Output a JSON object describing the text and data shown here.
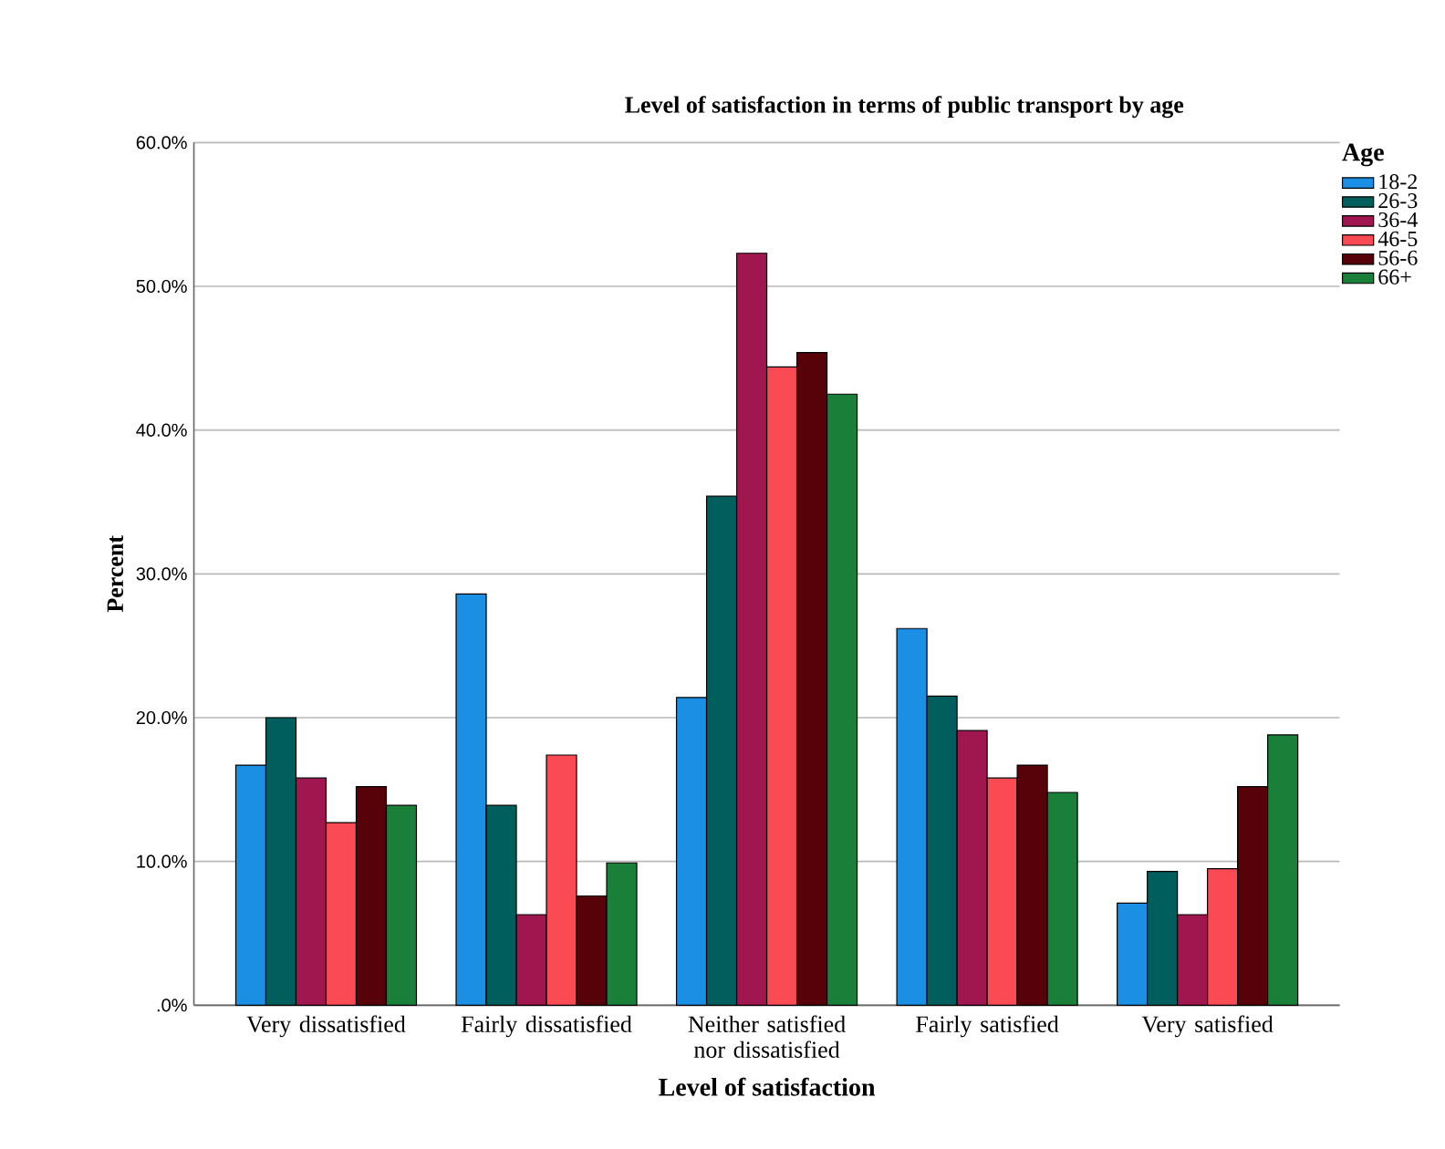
{
  "chart_data": {
    "type": "bar",
    "title": "Level of satisfaction in terms of public transport by age",
    "xlabel": "Level of satisfaction",
    "ylabel": "Percent",
    "legend_title": "Age",
    "categories": [
      "Very dissatisfied",
      "Fairly dissatisfied",
      "Neither satisfied nor dissatisfied",
      "Fairly satisfied",
      "Very satisfied"
    ],
    "series": [
      {
        "name": "18-2",
        "color": "#1a8fe3",
        "values": [
          16.7,
          28.6,
          21.4,
          26.2,
          7.1
        ]
      },
      {
        "name": "26-3",
        "color": "#005e5c",
        "values": [
          20.0,
          13.9,
          35.4,
          21.5,
          9.3
        ]
      },
      {
        "name": "36-4",
        "color": "#a0174f",
        "values": [
          15.8,
          6.3,
          52.3,
          19.1,
          6.3
        ]
      },
      {
        "name": "46-5",
        "color": "#fa4b55",
        "values": [
          12.7,
          17.4,
          44.4,
          15.8,
          9.5
        ]
      },
      {
        "name": "56-6",
        "color": "#560208",
        "values": [
          15.2,
          7.6,
          45.4,
          16.7,
          15.2
        ]
      },
      {
        "name": "66+",
        "color": "#1a7f38",
        "values": [
          13.9,
          9.9,
          42.5,
          14.8,
          18.8
        ]
      }
    ],
    "ylim": [
      0,
      60
    ],
    "yticks": [
      {
        "value": 0,
        "label": ".0%"
      },
      {
        "value": 10,
        "label": "10.0%"
      },
      {
        "value": 20,
        "label": "20.0%"
      },
      {
        "value": 30,
        "label": "30.0%"
      },
      {
        "value": 40,
        "label": "40.0%"
      },
      {
        "value": 50,
        "label": "50.0%"
      },
      {
        "value": 60,
        "label": "60.0%"
      }
    ],
    "grid": "y",
    "legend": "top right"
  }
}
